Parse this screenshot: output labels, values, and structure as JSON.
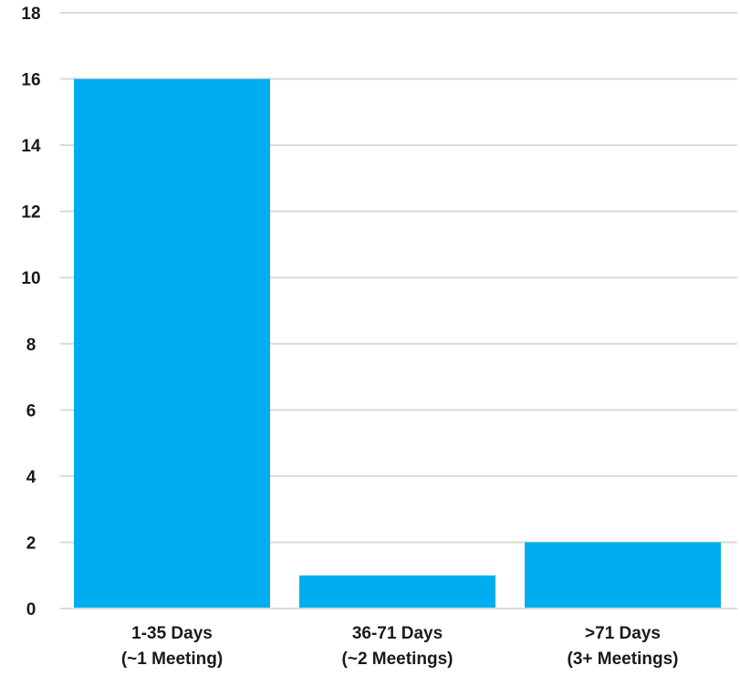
{
  "chart_data": {
    "type": "bar",
    "categories": [
      [
        "1-35 Days",
        "(~1 Meeting)"
      ],
      [
        "36-71 Days",
        "(~2 Meetings)"
      ],
      [
        ">71 Days",
        "(3+ Meetings)"
      ]
    ],
    "values": [
      16,
      1,
      2
    ],
    "ylim": [
      0,
      18
    ],
    "yticks": [
      0,
      2,
      4,
      6,
      8,
      10,
      12,
      14,
      16,
      18
    ],
    "grid": true,
    "title": "",
    "xlabel": "",
    "ylabel": "",
    "bar_color": "#00aeef",
    "grid_color": "#d9d9d9",
    "text_color": "#1a1a1a"
  }
}
